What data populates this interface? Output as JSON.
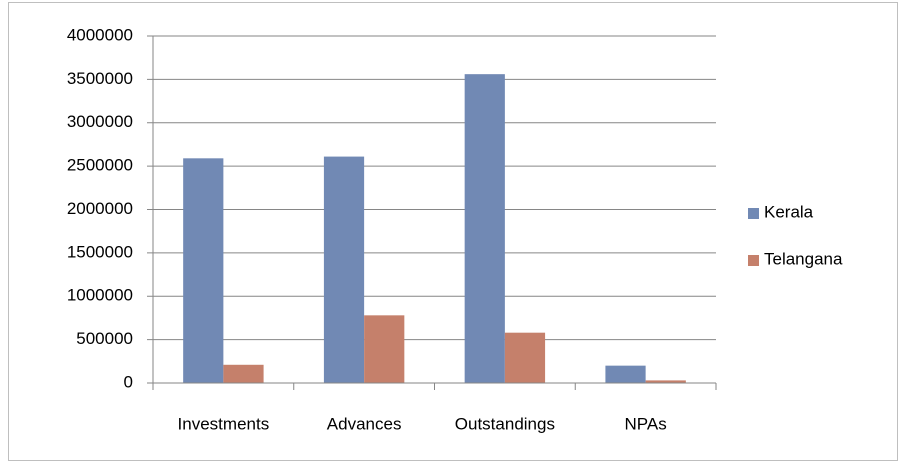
{
  "chart_data": {
    "type": "bar",
    "categories": [
      "Investments",
      "Advances",
      "Outstandings",
      "NPAs"
    ],
    "series": [
      {
        "name": "Kerala",
        "color": "#7189b4",
        "values": [
          2590000,
          2610000,
          3560000,
          200000
        ]
      },
      {
        "name": "Telangana",
        "color": "#c5806b",
        "values": [
          210000,
          780000,
          580000,
          30000
        ]
      }
    ],
    "ylim": [
      0,
      4000000
    ],
    "yticks": [
      0,
      500000,
      1000000,
      1500000,
      2000000,
      2500000,
      3000000,
      3500000,
      4000000
    ],
    "grid": true,
    "legend": "right"
  }
}
